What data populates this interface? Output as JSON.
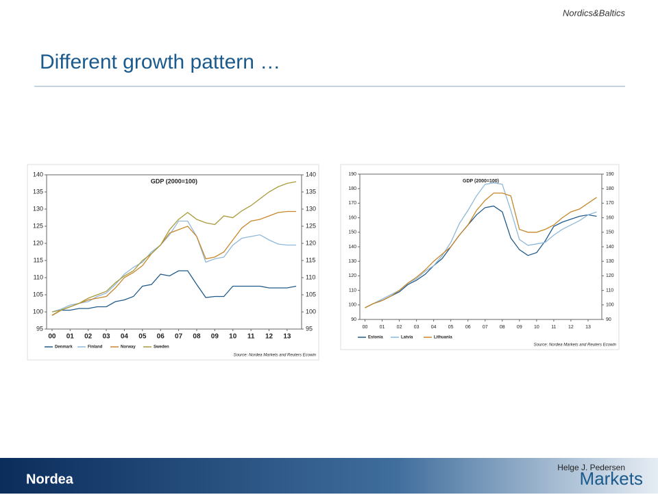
{
  "slide": {
    "header": "Nordics&Baltics",
    "title": "Different growth pattern …",
    "author": "Helge J. Pedersen",
    "brand": "Nordea",
    "division": "Markets"
  },
  "chart_data": [
    {
      "type": "line",
      "title": "GDP (2000=100)",
      "source": "Source: Nordea Markets and Reuters Ecowin",
      "x": [
        2000,
        2000.5,
        2001,
        2001.5,
        2002,
        2002.5,
        2003,
        2003.5,
        2004,
        2004.5,
        2005,
        2005.5,
        2006,
        2006.5,
        2007,
        2007.5,
        2008,
        2008.5,
        2009,
        2009.5,
        2010,
        2010.5,
        2011,
        2011.5,
        2012,
        2012.5,
        2013,
        2013.5
      ],
      "xlim": [
        1999.7,
        2013.8
      ],
      "xticks": [
        {
          "value": 2000,
          "label": "00"
        },
        {
          "value": 2001,
          "label": "01"
        },
        {
          "value": 2002,
          "label": "02"
        },
        {
          "value": 2003,
          "label": "03"
        },
        {
          "value": 2004,
          "label": "04"
        },
        {
          "value": 2005,
          "label": "05"
        },
        {
          "value": 2006,
          "label": "06"
        },
        {
          "value": 2007,
          "label": "07"
        },
        {
          "value": 2008,
          "label": "08"
        },
        {
          "value": 2009,
          "label": "09"
        },
        {
          "value": 2010,
          "label": "10"
        },
        {
          "value": 2011,
          "label": "11"
        },
        {
          "value": 2012,
          "label": "12"
        },
        {
          "value": 2013,
          "label": "13"
        }
      ],
      "ylim": [
        95,
        140
      ],
      "yticks": [
        95,
        100,
        105,
        110,
        115,
        120,
        125,
        130,
        135,
        140
      ],
      "y2lim": [
        95,
        140
      ],
      "y2ticks": [
        95,
        100,
        105,
        110,
        115,
        120,
        125,
        130,
        135,
        140
      ],
      "grid": false,
      "series": [
        {
          "name": "Denmark",
          "color": "#1f5a8a",
          "values": [
            99,
            100.5,
            100.5,
            101,
            101,
            101.5,
            101.5,
            103,
            103.5,
            104.5,
            107.5,
            108,
            111,
            110.5,
            112,
            112,
            108,
            104.2,
            104.5,
            104.5,
            107.5,
            107.5,
            107.5,
            107.5,
            107,
            107,
            107,
            107.5
          ]
        },
        {
          "name": "Finland",
          "color": "#8fb8d8",
          "values": [
            100,
            100.8,
            102,
            102.5,
            103,
            104.5,
            105.5,
            108,
            111,
            113,
            114.5,
            117.5,
            119.5,
            122.5,
            126.5,
            126.5,
            122,
            114.5,
            115.5,
            116,
            119.5,
            121.5,
            122,
            122.5,
            121,
            119.8,
            119.5,
            119.5
          ]
        },
        {
          "name": "Norway",
          "color": "#c8862a",
          "values": [
            99,
            100.5,
            101.5,
            102.5,
            103.5,
            104,
            104.5,
            107,
            110,
            111.5,
            113.5,
            117,
            119.5,
            123,
            124,
            125,
            122,
            115.5,
            116,
            117.5,
            121,
            124.5,
            126.5,
            127,
            128,
            129,
            129.3,
            129.3
          ]
        },
        {
          "name": "Sweden",
          "color": "#a89a3c",
          "values": [
            100,
            100.5,
            101.5,
            102.5,
            104,
            105,
            106,
            108.5,
            110.5,
            112,
            115,
            117,
            119.5,
            124,
            127,
            129,
            127,
            126,
            125.5,
            128,
            127.5,
            129.5,
            131,
            133,
            135,
            136.5,
            137.5,
            138
          ]
        }
      ]
    },
    {
      "type": "line",
      "title": "GDP (2000=100)",
      "source": "Source: Nordea Markets and Reuters Ecowin",
      "x": [
        2000,
        2000.5,
        2001,
        2001.5,
        2002,
        2002.5,
        2003,
        2003.5,
        2004,
        2004.5,
        2005,
        2005.5,
        2006,
        2006.5,
        2007,
        2007.5,
        2008,
        2008.5,
        2009,
        2009.5,
        2010,
        2010.5,
        2011,
        2011.5,
        2012,
        2012.5,
        2013,
        2013.5
      ],
      "xlim": [
        1999.7,
        2013.8
      ],
      "xticks": [
        {
          "value": 2000,
          "label": "00"
        },
        {
          "value": 2001,
          "label": "01"
        },
        {
          "value": 2002,
          "label": "02"
        },
        {
          "value": 2003,
          "label": "03"
        },
        {
          "value": 2004,
          "label": "04"
        },
        {
          "value": 2005,
          "label": "05"
        },
        {
          "value": 2006,
          "label": "06"
        },
        {
          "value": 2007,
          "label": "07"
        },
        {
          "value": 2008,
          "label": "08"
        },
        {
          "value": 2009,
          "label": "09"
        },
        {
          "value": 2010,
          "label": "10"
        },
        {
          "value": 2011,
          "label": "11"
        },
        {
          "value": 2012,
          "label": "12"
        },
        {
          "value": 2013,
          "label": "13"
        }
      ],
      "ylim": [
        90,
        190
      ],
      "yticks": [
        90,
        100,
        110,
        120,
        130,
        140,
        150,
        160,
        170,
        180,
        190
      ],
      "y2lim": [
        90,
        190
      ],
      "y2ticks": [
        90,
        100,
        110,
        120,
        130,
        140,
        150,
        160,
        170,
        180,
        190
      ],
      "grid": false,
      "series": [
        {
          "name": "Estonia",
          "color": "#1f5a8a",
          "values": [
            98,
            101,
            103,
            106,
            109,
            114,
            117,
            121,
            127,
            132,
            140,
            148,
            155,
            162,
            167,
            168,
            164,
            146,
            138,
            134,
            136,
            144,
            154,
            157,
            159,
            161,
            162,
            161
          ]
        },
        {
          "name": "Latvia",
          "color": "#8fb8d8",
          "values": [
            98,
            101,
            104,
            107,
            110,
            115,
            118,
            123,
            127,
            134,
            143,
            156,
            165,
            175,
            183,
            184,
            183,
            165,
            145,
            141,
            142,
            143,
            148,
            152,
            155,
            158,
            162,
            164
          ]
        },
        {
          "name": "Lithuania",
          "color": "#c8862a",
          "values": [
            98,
            101,
            103,
            106,
            110,
            115,
            119,
            124,
            130,
            135,
            140,
            148,
            155,
            165,
            172,
            177,
            177,
            175,
            152,
            150,
            150,
            152,
            155,
            160,
            164,
            166,
            170,
            174
          ]
        }
      ]
    }
  ]
}
